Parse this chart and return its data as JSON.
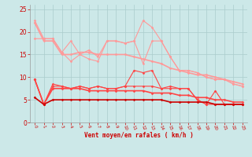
{
  "xlabel": "Vent moyen/en rafales ( km/h )",
  "bg_color": "#cce8e8",
  "grid_color": "#aacccc",
  "x": [
    0,
    1,
    2,
    3,
    4,
    5,
    6,
    7,
    8,
    9,
    10,
    11,
    12,
    13,
    14,
    15,
    16,
    17,
    18,
    19,
    20,
    21,
    22,
    23
  ],
  "series": [
    {
      "color": "#ff9999",
      "lw": 0.8,
      "marker": "D",
      "ms": 1.5,
      "y": [
        22.5,
        18.5,
        18.5,
        15.5,
        18.0,
        15.0,
        14.0,
        13.5,
        18.0,
        18.0,
        17.5,
        18.0,
        22.5,
        21.0,
        18.0,
        14.5,
        11.5,
        11.5,
        11.0,
        10.0,
        9.5,
        9.5,
        8.5,
        8.0
      ]
    },
    {
      "color": "#ff9999",
      "lw": 0.8,
      "marker": "D",
      "ms": 1.5,
      "y": [
        18.5,
        18.5,
        18.5,
        15.5,
        13.5,
        15.0,
        16.0,
        14.5,
        18.0,
        18.0,
        17.5,
        18.0,
        13.0,
        18.0,
        18.0,
        14.5,
        11.5,
        11.5,
        11.0,
        10.0,
        9.5,
        9.5,
        8.5,
        8.0
      ]
    },
    {
      "color": "#ff9999",
      "lw": 1.2,
      "marker": "D",
      "ms": 1.5,
      "y": [
        22.0,
        18.0,
        18.0,
        15.0,
        15.0,
        15.5,
        15.5,
        15.0,
        15.0,
        15.0,
        15.0,
        14.5,
        14.0,
        13.5,
        13.0,
        12.0,
        11.5,
        11.0,
        10.5,
        10.5,
        10.0,
        9.5,
        9.0,
        8.5
      ]
    },
    {
      "color": "#ff4444",
      "lw": 0.8,
      "marker": "D",
      "ms": 1.5,
      "y": [
        9.5,
        4.0,
        8.5,
        8.0,
        7.5,
        8.0,
        7.5,
        8.0,
        7.5,
        7.5,
        8.0,
        11.5,
        11.0,
        11.5,
        7.5,
        8.0,
        7.5,
        7.5,
        5.0,
        4.0,
        7.0,
        4.0,
        4.0,
        4.0
      ]
    },
    {
      "color": "#ff4444",
      "lw": 0.8,
      "marker": "D",
      "ms": 1.5,
      "y": [
        9.5,
        4.0,
        8.0,
        8.0,
        7.5,
        8.0,
        7.5,
        8.0,
        7.5,
        7.5,
        8.0,
        8.0,
        8.0,
        8.0,
        7.5,
        7.5,
        7.5,
        7.5,
        5.0,
        4.0,
        4.0,
        4.0,
        4.0,
        4.0
      ]
    },
    {
      "color": "#ff4444",
      "lw": 1.2,
      "marker": "D",
      "ms": 1.5,
      "y": [
        9.5,
        4.0,
        7.5,
        7.5,
        7.5,
        7.5,
        7.0,
        7.0,
        7.0,
        7.0,
        7.0,
        7.0,
        7.0,
        6.5,
        6.5,
        6.5,
        6.0,
        6.0,
        5.5,
        5.5,
        5.0,
        5.0,
        4.5,
        4.5
      ]
    },
    {
      "color": "#cc0000",
      "lw": 1.2,
      "marker": "D",
      "ms": 1.5,
      "y": [
        5.5,
        4.0,
        5.0,
        5.0,
        5.0,
        5.0,
        5.0,
        5.0,
        5.0,
        5.0,
        5.0,
        5.0,
        5.0,
        5.0,
        5.0,
        4.5,
        4.5,
        4.5,
        4.5,
        4.5,
        4.0,
        4.0,
        4.0,
        4.0
      ]
    }
  ],
  "ylim": [
    0,
    26
  ],
  "yticks": [
    0,
    5,
    10,
    15,
    20,
    25
  ],
  "tick_color": "#cc0000",
  "label_color": "#cc0000"
}
